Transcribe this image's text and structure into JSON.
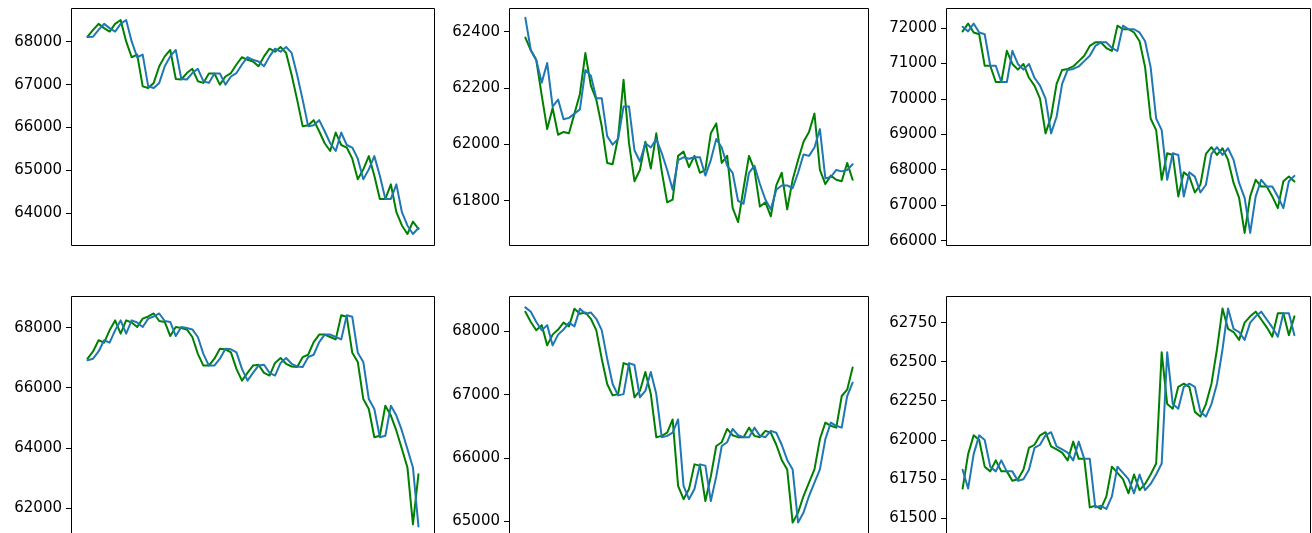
{
  "chart_data": [
    {
      "type": "line",
      "categories": [
        null,
        null,
        null,
        null,
        null,
        null,
        null,
        null,
        null,
        null,
        null,
        null,
        null,
        null,
        null,
        null,
        null,
        null,
        null,
        null,
        null,
        null,
        null,
        null,
        null,
        null,
        null,
        null,
        null,
        null,
        null,
        null,
        null,
        null,
        null,
        null,
        null,
        null,
        null,
        null,
        null,
        null,
        null,
        null,
        null,
        null,
        null,
        null,
        null,
        null,
        null,
        null,
        null,
        null,
        null,
        null,
        null,
        null,
        null,
        null,
        null
      ],
      "series": [
        {
          "color": "#008000",
          "values": [
            68120,
            68280,
            68420,
            68320,
            68240,
            68420,
            68510,
            68010,
            67640,
            67700,
            66960,
            66920,
            67040,
            67430,
            67660,
            67810,
            67130,
            67120,
            67270,
            67370,
            67080,
            67040,
            67260,
            67260,
            67000,
            67190,
            67270,
            67470,
            67640,
            67580,
            67540,
            67430,
            67660,
            67840,
            67770,
            67880,
            67740,
            67230,
            66650,
            66030,
            66050,
            66170,
            65910,
            65630,
            65450,
            65880,
            65590,
            65530,
            65270,
            64790,
            65020,
            65330,
            64870,
            64330,
            64330,
            64670,
            64020,
            63710,
            63510,
            63800,
            63630
          ]
        },
        {
          "color": "#1f77b4",
          "values": [
            68110,
            68120,
            68280,
            68420,
            68320,
            68240,
            68420,
            68510,
            68010,
            67640,
            67700,
            66960,
            66920,
            67040,
            67430,
            67660,
            67810,
            67130,
            67120,
            67270,
            67370,
            67080,
            67040,
            67260,
            67260,
            67000,
            67190,
            67270,
            67470,
            67640,
            67580,
            67540,
            67430,
            67660,
            67840,
            67770,
            67880,
            67740,
            67230,
            66650,
            66030,
            66050,
            66170,
            65910,
            65630,
            65450,
            65880,
            65590,
            65530,
            65270,
            64790,
            65020,
            65330,
            64870,
            64330,
            64330,
            64670,
            64020,
            63710,
            63510,
            63650
          ]
        }
      ],
      "ylim": [
        63230,
        68790
      ],
      "yticks": [
        64000,
        65000,
        66000,
        67000,
        68000
      ],
      "tick_labels": "y"
    },
    {
      "type": "line",
      "categories": [
        null,
        null,
        null,
        null,
        null,
        null,
        null,
        null,
        null,
        null,
        null,
        null,
        null,
        null,
        null,
        null,
        null,
        null,
        null,
        null,
        null,
        null,
        null,
        null,
        null,
        null,
        null,
        null,
        null,
        null,
        null,
        null,
        null,
        null,
        null,
        null,
        null,
        null,
        null,
        null,
        null,
        null,
        null,
        null,
        null,
        null,
        null,
        null,
        null,
        null,
        null,
        null,
        null,
        null,
        null,
        null,
        null,
        null,
        null,
        null,
        null
      ],
      "series": [
        {
          "color": "#008000",
          "values": [
            62380,
            62335,
            62300,
            62175,
            62055,
            62130,
            62035,
            62045,
            62040,
            62110,
            62180,
            62325,
            62210,
            62160,
            62065,
            61935,
            61930,
            62025,
            62230,
            62005,
            61870,
            61910,
            62010,
            61915,
            62040,
            61905,
            61795,
            61805,
            61960,
            61975,
            61920,
            61960,
            61900,
            61910,
            62040,
            62075,
            61935,
            61960,
            61775,
            61725,
            61845,
            61960,
            61910,
            61780,
            61795,
            61745,
            61855,
            61900,
            61770,
            61875,
            61945,
            62010,
            62045,
            62110,
            61910,
            61860,
            61890,
            61875,
            61870,
            61935,
            61875
          ]
        },
        {
          "color": "#1f77b4",
          "values": [
            62450,
            62335,
            62300,
            62220,
            62290,
            62135,
            62160,
            62090,
            62095,
            62110,
            62125,
            62265,
            62245,
            62165,
            62165,
            62030,
            62000,
            62020,
            62135,
            62135,
            61980,
            61940,
            62005,
            61990,
            62020,
            61970,
            61910,
            61840,
            61945,
            61955,
            61950,
            61955,
            61955,
            61890,
            61945,
            62020,
            61990,
            61925,
            61900,
            61800,
            61790,
            61900,
            61925,
            61860,
            61805,
            61770,
            61840,
            61855,
            61855,
            61845,
            61900,
            61965,
            61960,
            61990,
            62055,
            61880,
            61885,
            61910,
            61905,
            61910,
            61930
          ]
        }
      ],
      "ylim": [
        61640,
        62485
      ],
      "yticks": [
        61800,
        62000,
        62200,
        62400
      ],
      "tick_labels": "y"
    },
    {
      "type": "line",
      "categories": [
        null,
        null,
        null,
        null,
        null,
        null,
        null,
        null,
        null,
        null,
        null,
        null,
        null,
        null,
        null,
        null,
        null,
        null,
        null,
        null,
        null,
        null,
        null,
        null,
        null,
        null,
        null,
        null,
        null,
        null,
        null,
        null,
        null,
        null,
        null,
        null,
        null,
        null,
        null,
        null,
        null,
        null,
        null,
        null,
        null,
        null,
        null,
        null,
        null,
        null,
        null,
        null,
        null,
        null,
        null,
        null,
        null,
        null,
        null,
        null,
        null
      ],
      "series": [
        {
          "color": "#008000",
          "values": [
            71910,
            72130,
            71880,
            71830,
            70940,
            70940,
            70480,
            70480,
            71360,
            70990,
            70830,
            70990,
            70600,
            70380,
            70010,
            69030,
            69500,
            70430,
            70820,
            70850,
            70920,
            71070,
            71220,
            71500,
            71600,
            71600,
            71440,
            71360,
            72070,
            71970,
            71970,
            71880,
            71630,
            70900,
            69450,
            69120,
            67720,
            68470,
            68420,
            67250,
            67930,
            67810,
            67360,
            67580,
            68450,
            68640,
            68420,
            68610,
            68280,
            67630,
            67210,
            66220,
            67250,
            67720,
            67530,
            67530,
            67250,
            66920,
            67680,
            67810,
            67670
          ]
        },
        {
          "color": "#1f77b4",
          "values": [
            72040,
            71910,
            72130,
            71880,
            71830,
            70940,
            70940,
            70480,
            70480,
            71360,
            70990,
            70830,
            70990,
            70600,
            70380,
            70010,
            69030,
            69500,
            70430,
            70820,
            70850,
            70920,
            71070,
            71220,
            71500,
            71600,
            71600,
            71440,
            71360,
            72070,
            71970,
            71970,
            71880,
            71630,
            70900,
            69450,
            69120,
            67720,
            68470,
            68420,
            67250,
            67930,
            67810,
            67360,
            67580,
            68450,
            68640,
            68420,
            68610,
            68280,
            67630,
            67210,
            66220,
            67250,
            67720,
            67530,
            67530,
            67250,
            66920,
            67680,
            67830
          ]
        }
      ],
      "ylim": [
        65850,
        72570
      ],
      "yticks": [
        66000,
        67000,
        68000,
        69000,
        70000,
        71000,
        72000
      ],
      "tick_labels": "y"
    },
    {
      "type": "line",
      "categories": [
        null,
        null,
        null,
        null,
        null,
        null,
        null,
        null,
        null,
        null,
        null,
        null,
        null,
        null,
        null,
        null,
        null,
        null,
        null,
        null,
        null,
        null,
        null,
        null,
        null,
        null,
        null,
        null,
        null,
        null,
        null,
        null,
        null,
        null,
        null,
        null,
        null,
        null,
        null,
        null,
        null,
        null,
        null,
        null,
        null,
        null,
        null,
        null,
        null,
        null,
        null,
        null,
        null,
        null,
        null,
        null,
        null,
        null,
        null,
        null,
        null
      ],
      "series": [
        {
          "color": "#008000",
          "values": [
            66970,
            67210,
            67580,
            67500,
            67910,
            68240,
            67800,
            68240,
            68170,
            68020,
            68300,
            68370,
            68470,
            68220,
            68190,
            67720,
            68020,
            67990,
            67940,
            67690,
            67130,
            66740,
            66740,
            66970,
            67300,
            67280,
            67180,
            66630,
            66240,
            66500,
            66740,
            66770,
            66500,
            66410,
            66830,
            66990,
            66800,
            66710,
            66690,
            67020,
            67100,
            67520,
            67770,
            67770,
            67690,
            67610,
            68410,
            68360,
            67170,
            66860,
            65630,
            65300,
            64360,
            64410,
            65410,
            65080,
            64580,
            63970,
            63360,
            61470,
            63130
          ]
        },
        {
          "color": "#1f77b4",
          "values": [
            66920,
            66970,
            67210,
            67580,
            67500,
            67910,
            68240,
            67800,
            68240,
            68170,
            68020,
            68300,
            68370,
            68470,
            68220,
            68190,
            67720,
            68020,
            67990,
            67940,
            67690,
            67130,
            66740,
            66740,
            66970,
            67300,
            67280,
            67180,
            66630,
            66240,
            66500,
            66740,
            66770,
            66500,
            66410,
            66830,
            66990,
            66800,
            66710,
            66690,
            67020,
            67100,
            67520,
            67770,
            67770,
            67690,
            67610,
            68410,
            68360,
            67170,
            66860,
            65630,
            65300,
            64360,
            64410,
            65410,
            65080,
            64580,
            63970,
            63360,
            61400
          ]
        }
      ],
      "ylim": [
        61150,
        69050
      ],
      "yticks": [
        62000,
        64000,
        66000,
        68000
      ],
      "tick_labels": "y"
    },
    {
      "type": "line",
      "categories": [
        null,
        null,
        null,
        null,
        null,
        null,
        null,
        null,
        null,
        null,
        null,
        null,
        null,
        null,
        null,
        null,
        null,
        null,
        null,
        null,
        null,
        null,
        null,
        null,
        null,
        null,
        null,
        null,
        null,
        null,
        null,
        null,
        null,
        null,
        null,
        null,
        null,
        null,
        null,
        null,
        null,
        null,
        null,
        null,
        null,
        null,
        null,
        null,
        null,
        null,
        null,
        null,
        null,
        null,
        null,
        null,
        null,
        null,
        null,
        null,
        null
      ],
      "series": [
        {
          "color": "#008000",
          "values": [
            68310,
            68150,
            68020,
            68100,
            67780,
            67950,
            68030,
            68140,
            68080,
            68360,
            68280,
            68300,
            68200,
            68020,
            67570,
            67170,
            66990,
            67010,
            67500,
            67470,
            66960,
            67060,
            67360,
            67010,
            66330,
            66350,
            66400,
            66610,
            65560,
            65350,
            65510,
            65900,
            65880,
            65320,
            65710,
            66190,
            66250,
            66460,
            66360,
            66330,
            66330,
            66480,
            66350,
            66330,
            66430,
            66400,
            66210,
            65970,
            65820,
            64980,
            65140,
            65400,
            65610,
            65820,
            66300,
            66560,
            66510,
            66480,
            66980,
            67080,
            67430
          ]
        },
        {
          "color": "#1f77b4",
          "values": [
            68380,
            68310,
            68150,
            68020,
            68100,
            67780,
            67950,
            68030,
            68140,
            68080,
            68360,
            68280,
            68300,
            68200,
            68020,
            67570,
            67170,
            66990,
            67010,
            67500,
            67470,
            66960,
            67060,
            67360,
            67010,
            66330,
            66350,
            66400,
            66610,
            65560,
            65350,
            65510,
            65900,
            65880,
            65320,
            65710,
            66190,
            66250,
            66460,
            66360,
            66330,
            66330,
            66480,
            66350,
            66330,
            66430,
            66400,
            66210,
            65970,
            65820,
            64980,
            65140,
            65400,
            65610,
            65820,
            66300,
            66560,
            66510,
            66480,
            66980,
            67190
          ]
        }
      ],
      "ylim": [
        64800,
        68560
      ],
      "yticks": [
        65000,
        66000,
        67000,
        68000
      ],
      "tick_labels": "y"
    },
    {
      "type": "line",
      "categories": [
        null,
        null,
        null,
        null,
        null,
        null,
        null,
        null,
        null,
        null,
        null,
        null,
        null,
        null,
        null,
        null,
        null,
        null,
        null,
        null,
        null,
        null,
        null,
        null,
        null,
        null,
        null,
        null,
        null,
        null,
        null,
        null,
        null,
        null,
        null,
        null,
        null,
        null,
        null,
        null,
        null,
        null,
        null,
        null,
        null,
        null,
        null,
        null,
        null,
        null,
        null,
        null,
        null,
        null,
        null,
        null,
        null,
        null,
        null,
        null,
        null
      ],
      "series": [
        {
          "color": "#008000",
          "values": [
            61690,
            61910,
            62030,
            62000,
            61830,
            61800,
            61870,
            61800,
            61800,
            61740,
            61750,
            61810,
            61950,
            61970,
            62030,
            62050,
            61960,
            61940,
            61920,
            61870,
            61990,
            61880,
            61880,
            61570,
            61580,
            61560,
            61640,
            61830,
            61790,
            61750,
            61660,
            61780,
            61680,
            61720,
            61780,
            61850,
            62560,
            62230,
            62200,
            62340,
            62360,
            62340,
            62180,
            62150,
            62230,
            62360,
            62580,
            62840,
            62710,
            62690,
            62640,
            62750,
            62790,
            62820,
            62770,
            62720,
            62660,
            62810,
            62810,
            62670,
            62790
          ]
        },
        {
          "color": "#1f77b4",
          "values": [
            61810,
            61690,
            61910,
            62030,
            62000,
            61830,
            61800,
            61870,
            61800,
            61800,
            61740,
            61750,
            61810,
            61950,
            61970,
            62030,
            62050,
            61960,
            61940,
            61920,
            61870,
            61990,
            61880,
            61880,
            61570,
            61580,
            61560,
            61640,
            61830,
            61790,
            61750,
            61660,
            61780,
            61680,
            61720,
            61780,
            61850,
            62560,
            62230,
            62200,
            62340,
            62360,
            62340,
            62180,
            62150,
            62230,
            62360,
            62580,
            62840,
            62710,
            62690,
            62640,
            62750,
            62790,
            62820,
            62770,
            62720,
            62660,
            62810,
            62810,
            62670
          ]
        }
      ],
      "ylim": [
        61400,
        62920
      ],
      "yticks": [
        61500,
        61750,
        62000,
        62250,
        62500,
        62750
      ],
      "tick_labels": "y"
    }
  ]
}
